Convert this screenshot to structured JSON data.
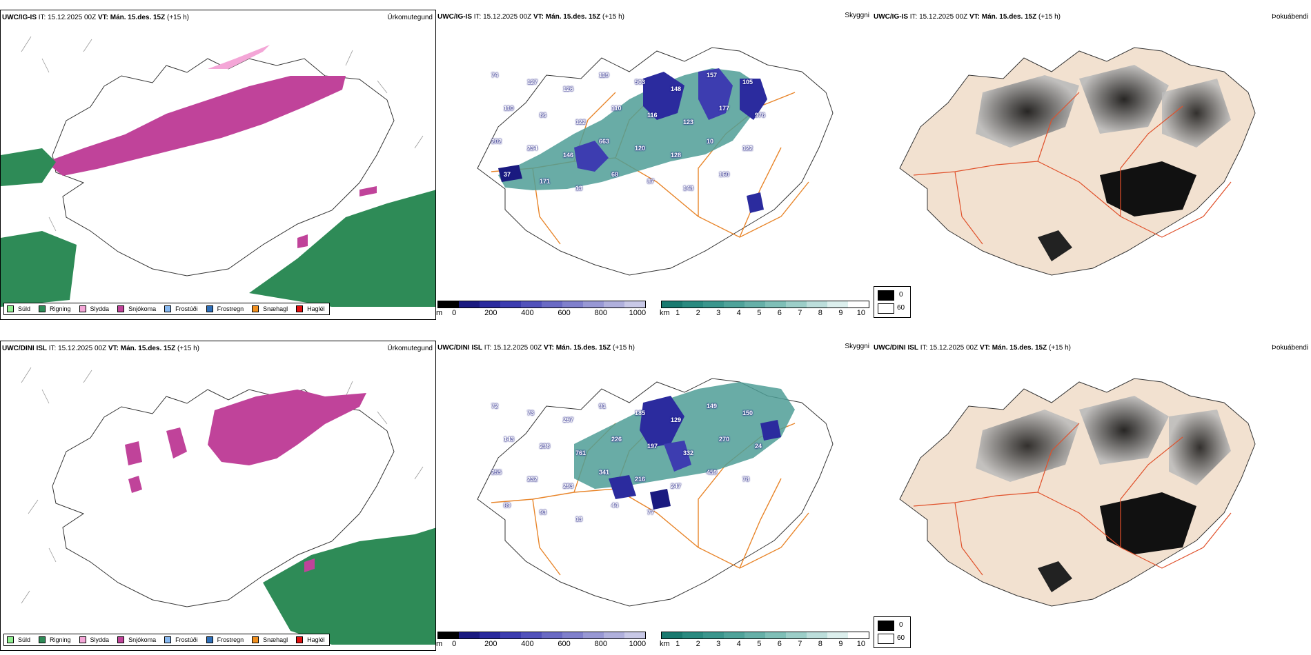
{
  "rows": [
    {
      "model": "UWC/IG-IS",
      "it_label": "IT:",
      "it_value": "15.12.2025 00Z",
      "vt_label": "VT:",
      "vt_value": "Mán. 15.des. 15Z",
      "lead": "(+15 h)",
      "precip_title": "Úrkomutegund",
      "cloud_title": "Skyggni",
      "fog_title": "Þokuábendi",
      "cloud_labels": [
        "74",
        "127",
        "126",
        "119",
        "503",
        "148",
        "157",
        "105",
        "110",
        "86",
        "122",
        "110",
        "116",
        "123",
        "177",
        "976",
        "202",
        "234",
        "146",
        "663",
        "120",
        "128",
        "10",
        "122",
        "37",
        "171",
        "13",
        "68",
        "87",
        "148",
        "160"
      ]
    },
    {
      "model": "UWC/DINI ISL",
      "it_label": "IT:",
      "it_value": "15.12.2025 00Z",
      "vt_label": "VT:",
      "vt_value": "Mán. 15.des. 15Z",
      "lead": "(+15 h)",
      "precip_title": "Úrkomutegund",
      "cloud_title": "Skyggni",
      "fog_title": "Þokuábendi",
      "cloud_labels": [
        "72",
        "73",
        "297",
        "91",
        "185",
        "129",
        "149",
        "150",
        "143",
        "298",
        "761",
        "226",
        "197",
        "332",
        "270",
        "24",
        "255",
        "232",
        "293",
        "341",
        "216",
        "247",
        "459",
        "78",
        "89",
        "93",
        "13",
        "44",
        "77"
      ]
    }
  ],
  "precip_legend": [
    {
      "label": "Súld",
      "color": "#90ee90"
    },
    {
      "label": "Rigning",
      "color": "#2e8b57"
    },
    {
      "label": "Slydda",
      "color": "#f4a6d7"
    },
    {
      "label": "Snjókoma",
      "color": "#c0439a"
    },
    {
      "label": "Frostúði",
      "color": "#87b8f0"
    },
    {
      "label": "Frostregn",
      "color": "#2f6fb8"
    },
    {
      "label": "Snæhagl",
      "color": "#f09020"
    },
    {
      "label": "Haglél",
      "color": "#e01010"
    }
  ],
  "cloudbase_bar": {
    "unit": "m",
    "ticks": [
      "0",
      "200",
      "400",
      "600",
      "800",
      "1000"
    ],
    "colors": [
      "#000000",
      "#1a1a80",
      "#2b2b9e",
      "#3d3db0",
      "#5252bb",
      "#6a6ac4",
      "#8080cc",
      "#9898d4",
      "#b0b0dc",
      "#c8c8e6"
    ]
  },
  "visibility_bar": {
    "unit": "km",
    "ticks": [
      "1",
      "2",
      "3",
      "4",
      "5",
      "6",
      "7",
      "8",
      "9",
      "10"
    ],
    "colors": [
      "#1a7a70",
      "#2a8a80",
      "#3b968d",
      "#4fa39a",
      "#66b0a8",
      "#7fbfb7",
      "#9ccec8",
      "#bcdedb",
      "#dcefed",
      "#ffffff"
    ]
  },
  "fog_legend": {
    "dark_value": "0",
    "light_value": "60"
  }
}
